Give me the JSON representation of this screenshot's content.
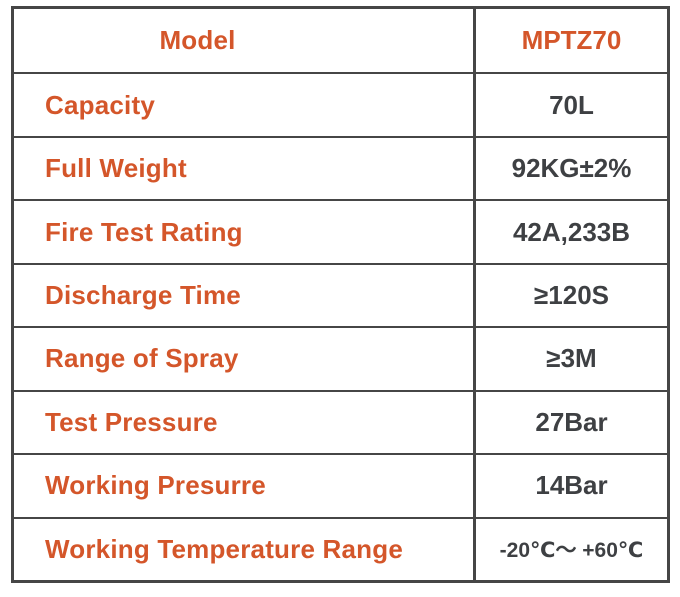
{
  "colors": {
    "label_orange": "#d4562a",
    "value_gray": "#3e4043",
    "border_gray": "#464646",
    "background": "#ffffff"
  },
  "table": {
    "rows": [
      {
        "label": "Model",
        "value": "MPTZ70"
      },
      {
        "label": "Capacity",
        "value": "70L"
      },
      {
        "label": "Full Weight",
        "value": "92KG±2%"
      },
      {
        "label": "Fire Test Rating",
        "value": "42A,233B"
      },
      {
        "label": "Discharge Time",
        "value": "≥120S"
      },
      {
        "label": "Range of Spray",
        "value": "≥3M"
      },
      {
        "label": "Test Pressure",
        "value": "27Bar"
      },
      {
        "label": "Working Presurre",
        "value": "14Bar"
      },
      {
        "label": "Working Temperature Range",
        "value": "-20℃～ +60℃"
      }
    ]
  }
}
